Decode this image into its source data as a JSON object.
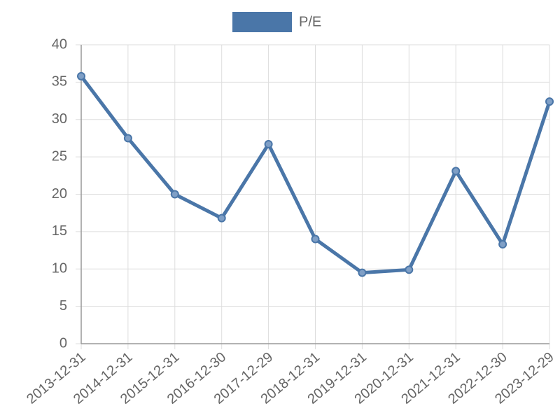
{
  "chart_data": {
    "type": "line",
    "categories": [
      "2013-12-31",
      "2014-12-31",
      "2015-12-31",
      "2016-12-30",
      "2017-12-29",
      "2018-12-31",
      "2019-12-31",
      "2020-12-31",
      "2021-12-31",
      "2022-12-30",
      "2023-12-29"
    ],
    "series": [
      {
        "name": "P/E",
        "color": "#4a76a8",
        "values": [
          35.8,
          27.5,
          20.0,
          16.8,
          26.7,
          14.0,
          9.5,
          9.9,
          23.1,
          13.3,
          32.4
        ]
      }
    ],
    "ylim": [
      0,
      40
    ],
    "yticks": [
      0,
      5,
      10,
      15,
      20,
      25,
      30,
      35,
      40
    ],
    "grid": true,
    "legend": "top"
  }
}
